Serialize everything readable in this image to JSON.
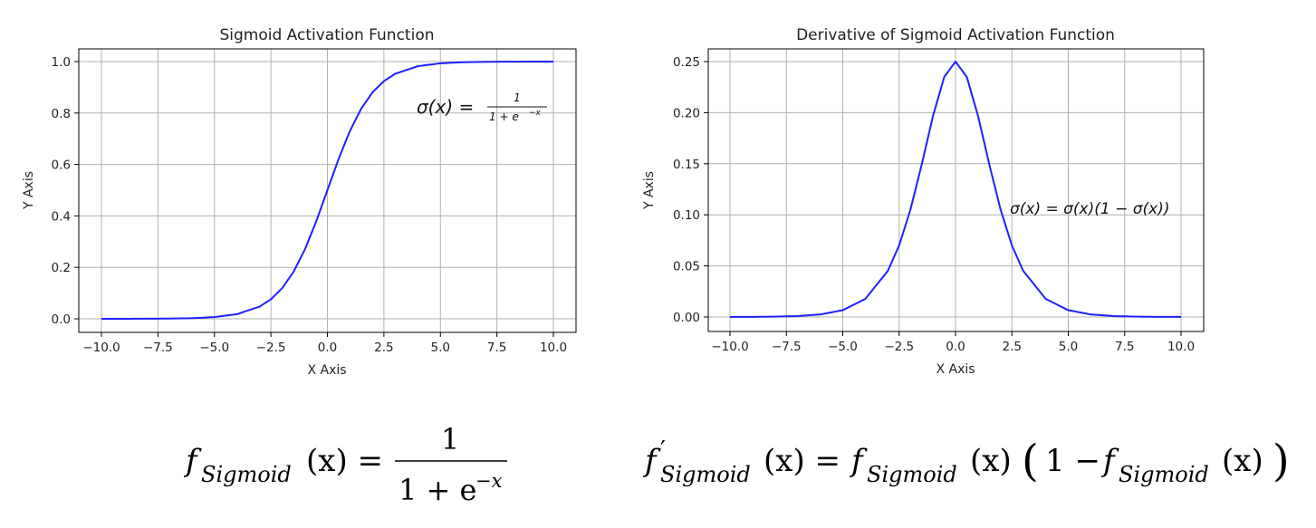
{
  "chart_data": [
    {
      "type": "line",
      "title": "Sigmoid Activation Function",
      "xlabel": "X Axis",
      "ylabel": "Y Axis",
      "xlim": [
        -10,
        10
      ],
      "ylim": [
        0,
        1
      ],
      "xticks": [
        "−10.0",
        "−7.5",
        "−5.0",
        "−2.5",
        "0.0",
        "2.5",
        "5.0",
        "7.5",
        "10.0"
      ],
      "yticks": [
        "0.0",
        "0.2",
        "0.4",
        "0.6",
        "0.8",
        "1.0"
      ],
      "grid": true,
      "series_color": "#1f1fff",
      "x": [
        -10,
        -9,
        -8,
        -7,
        -6,
        -5,
        -4,
        -3,
        -2.5,
        -2,
        -1.5,
        -1,
        -0.5,
        0,
        0.5,
        1,
        1.5,
        2,
        2.5,
        3,
        4,
        5,
        6,
        7,
        8,
        9,
        10
      ],
      "y": [
        5e-05,
        0.00012,
        0.00034,
        0.00091,
        0.00247,
        0.00669,
        0.01799,
        0.04743,
        0.07586,
        0.1192,
        0.18243,
        0.26894,
        0.37754,
        0.5,
        0.62246,
        0.73106,
        0.81757,
        0.8808,
        0.92414,
        0.95257,
        0.98201,
        0.99331,
        0.99753,
        0.99909,
        0.99966,
        0.99988,
        0.99995
      ],
      "annotation": {
        "lhs": "σ(x) =",
        "num": "1",
        "den": "1 + e",
        "den_exp": "−x"
      }
    },
    {
      "type": "line",
      "title": "Derivative of Sigmoid Activation Function",
      "xlabel": "X Axis",
      "ylabel": "Y Axis",
      "xlim": [
        -10,
        10
      ],
      "ylim": [
        0,
        0.25
      ],
      "xticks": [
        "−10.0",
        "−7.5",
        "−5.0",
        "−2.5",
        "0.0",
        "2.5",
        "5.0",
        "7.5",
        "10.0"
      ],
      "yticks": [
        "0.00",
        "0.05",
        "0.10",
        "0.15",
        "0.20",
        "0.25"
      ],
      "grid": true,
      "series_color": "#1f1fff",
      "x": [
        -10,
        -9,
        -8,
        -7,
        -6,
        -5,
        -4,
        -3,
        -2.5,
        -2,
        -1.5,
        -1,
        -0.5,
        0,
        0.5,
        1,
        1.5,
        2,
        2.5,
        3,
        4,
        5,
        6,
        7,
        8,
        9,
        10
      ],
      "y": [
        5e-05,
        0.00012,
        0.00034,
        0.00091,
        0.00247,
        0.00665,
        0.01766,
        0.04518,
        0.07011,
        0.10499,
        0.14915,
        0.19661,
        0.235,
        0.25,
        0.235,
        0.19661,
        0.14915,
        0.10499,
        0.07011,
        0.04518,
        0.01766,
        0.00665,
        0.00247,
        0.00091,
        0.00034,
        0.00012,
        5e-05
      ],
      "annotation": {
        "text": "σ(x)  = σ(x)(1 − σ(x))"
      }
    }
  ],
  "formulas": {
    "left": {
      "f": "f",
      "sub": "Sigmoid",
      "arg": "(x) =",
      "num": "1",
      "den": "1 + e",
      "den_exp": "−x"
    },
    "right": {
      "f": "f",
      "prime": "′",
      "sub": "Sigmoid",
      "arg": "(x) =",
      "f2": "f",
      "sub2": "Sigmoid",
      "arg2": "(x)",
      "open": "(",
      "one_minus": "1 −",
      "f3": "f",
      "sub3": "Sigmoid",
      "arg3": "(x)",
      "close": ")"
    }
  }
}
